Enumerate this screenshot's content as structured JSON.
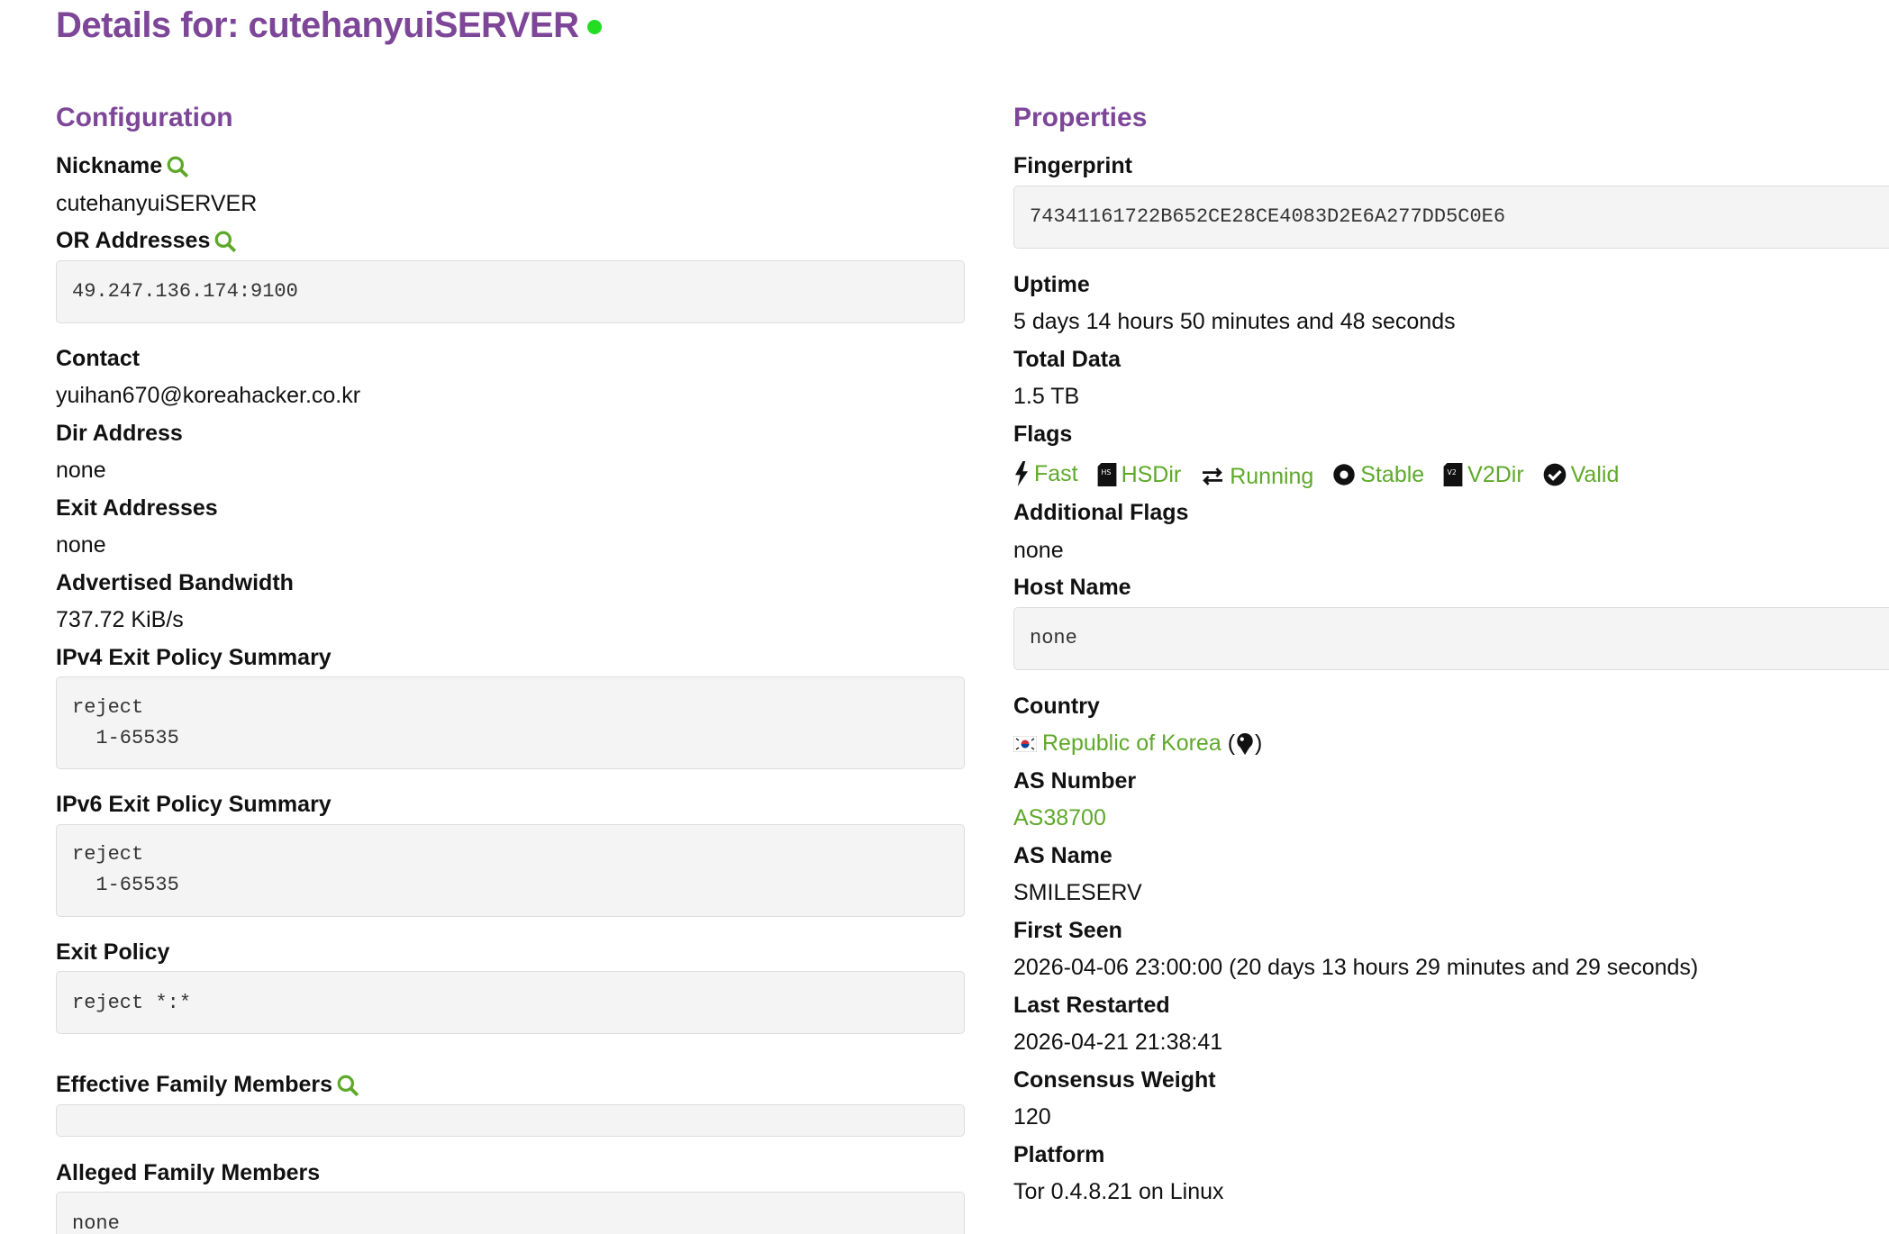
{
  "title": {
    "text": "Details for: cutehanyuiSERVER",
    "status_color": "#22dd22"
  },
  "configuration": {
    "heading": "Configuration",
    "nickname_label": "Nickname",
    "nickname": "cutehanyuiSERVER",
    "or_label": "OR Addresses",
    "or_value": "49.247.136.174:9100",
    "contact_label": "Contact",
    "contact": "yuihan670@koreahacker.co.kr",
    "dir_label": "Dir Address",
    "dir": "none",
    "exit_addr_label": "Exit Addresses",
    "exit_addr": "none",
    "bw_label": "Advertised Bandwidth",
    "bw": "737.72 KiB/s",
    "ipv4_label": "IPv4 Exit Policy Summary",
    "ipv4": "reject\n  1-65535",
    "ipv6_label": "IPv6 Exit Policy Summary",
    "ipv6": "reject\n  1-65535",
    "exit_policy_label": "Exit Policy",
    "exit_policy": "reject *:*",
    "eff_family_label": "Effective Family Members",
    "eff_family": "",
    "alleged_label": "Alleged Family Members",
    "alleged": "none"
  },
  "properties": {
    "heading": "Properties",
    "fp_label": "Fingerprint",
    "fp": "74341161722B652CE28CE4083D2E6A277DD5C0E6",
    "uptime_label": "Uptime",
    "uptime": "5 days 14 hours 50 minutes and 48 seconds",
    "data_label": "Total Data",
    "data": "1.5 TB",
    "flags_label": "Flags",
    "flags": [
      "Fast",
      "HSDir",
      "Running",
      "Stable",
      "V2Dir",
      "Valid"
    ],
    "addflags_label": "Additional Flags",
    "addflags": "none",
    "host_label": "Host Name",
    "host": "none",
    "country_label": "Country",
    "country": "Republic of Korea",
    "country_paren_open": "(",
    "country_paren_close": ")",
    "as_label": "AS Number",
    "as": "AS38700",
    "asname_label": "AS Name",
    "asname": "SMILESERV",
    "first_label": "First Seen",
    "first": "2026-04-06 23:00:00 (20 days 13 hours 29 minutes and 29 seconds)",
    "restart_label": "Last Restarted",
    "restart": "2026-04-21 21:38:41",
    "cw_label": "Consensus Weight",
    "cw": "120",
    "platform_label": "Platform",
    "platform": "Tor 0.4.8.21 on Linux",
    "link_color": "#5ea92a",
    "heading_color": "#7d4698"
  }
}
